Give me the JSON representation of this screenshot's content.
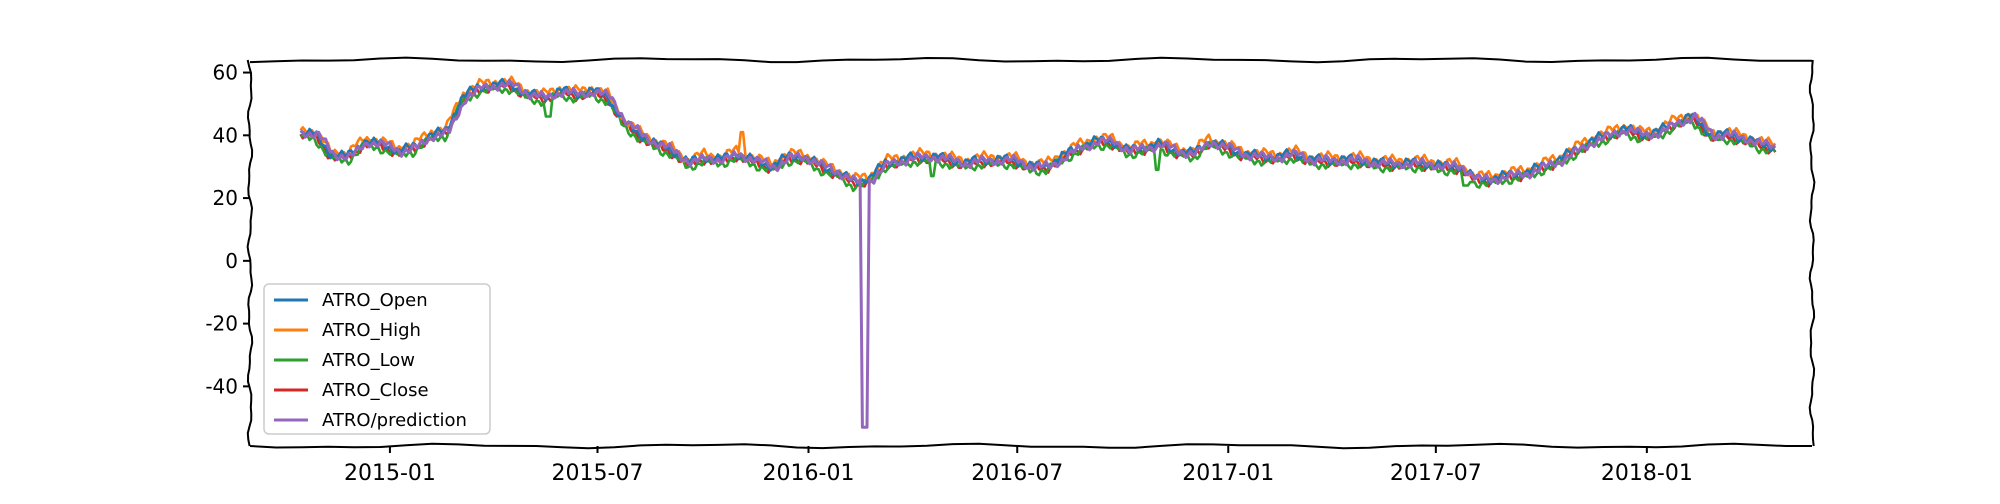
{
  "chart_data": {
    "type": "line",
    "title": "",
    "xlabel": "",
    "ylabel": "",
    "xlim": [
      "2014-09-01",
      "2018-05-25"
    ],
    "ylim": [
      -59,
      64
    ],
    "yticks": [
      60,
      40,
      20,
      0,
      -20,
      -40
    ],
    "ytick_labels": [
      "60",
      "40",
      "20",
      "0",
      "-20",
      "-40"
    ],
    "xticks": [
      "2015-01-01",
      "2015-07-01",
      "2016-01-01",
      "2016-07-01",
      "2017-01-01",
      "2017-07-01",
      "2018-01-01"
    ],
    "xtick_labels": [
      "2015-01",
      "2015-07",
      "2016-01",
      "2016-07",
      "2017-01",
      "2017-07",
      "2018-01"
    ],
    "legend_position": "lower-left",
    "series": [
      {
        "name": "ATRO_Open",
        "color": "#1f77b4",
        "offset": 0.3
      },
      {
        "name": "ATRO_High",
        "color": "#ff7f0e",
        "offset": 1.2,
        "spikes": [
          {
            "x": "2015-11-04",
            "y": 41
          }
        ]
      },
      {
        "name": "ATRO_Low",
        "color": "#2ca02c",
        "offset": -1.2,
        "spikes": [
          {
            "x": "2015-05-19",
            "y": 46
          },
          {
            "x": "2016-04-18",
            "y": 27
          },
          {
            "x": "2016-10-31",
            "y": 29
          },
          {
            "x": "2017-07-27",
            "y": 24
          }
        ]
      },
      {
        "name": "ATRO_Close",
        "color": "#d62728",
        "offset": -0.6,
        "lead": 0
      },
      {
        "name": "ATRO/prediction",
        "color": "#9467bd",
        "offset": 0,
        "lead": 1,
        "spikes": [
          {
            "x": "2016-02-19",
            "y": -53
          }
        ]
      }
    ],
    "x": [
      "2014-10-15",
      "2014-10-28",
      "2014-11-10",
      "2014-11-25",
      "2014-12-10",
      "2014-12-24",
      "2015-01-08",
      "2015-01-22",
      "2015-02-05",
      "2015-02-19",
      "2015-03-05",
      "2015-03-19",
      "2015-04-02",
      "2015-04-16",
      "2015-05-01",
      "2015-05-15",
      "2015-05-29",
      "2015-06-12",
      "2015-06-26",
      "2015-07-10",
      "2015-07-24",
      "2015-08-07",
      "2015-08-21",
      "2015-09-04",
      "2015-09-18",
      "2015-10-02",
      "2015-10-16",
      "2015-10-30",
      "2015-11-13",
      "2015-11-30",
      "2015-12-14",
      "2015-12-28",
      "2016-01-12",
      "2016-01-26",
      "2016-02-09",
      "2016-02-23",
      "2016-03-08",
      "2016-03-22",
      "2016-04-05",
      "2016-04-19",
      "2016-05-03",
      "2016-05-17",
      "2016-05-31",
      "2016-06-14",
      "2016-06-28",
      "2016-07-12",
      "2016-07-26",
      "2016-08-09",
      "2016-08-23",
      "2016-09-07",
      "2016-09-21",
      "2016-10-05",
      "2016-10-19",
      "2016-11-02",
      "2016-11-16",
      "2016-12-01",
      "2016-12-15",
      "2016-12-30",
      "2017-01-13",
      "2017-01-30",
      "2017-02-13",
      "2017-02-28",
      "2017-03-14",
      "2017-03-28",
      "2017-04-11",
      "2017-04-26",
      "2017-05-10",
      "2017-05-24",
      "2017-06-08",
      "2017-06-22",
      "2017-07-07",
      "2017-07-21",
      "2017-08-04",
      "2017-08-18",
      "2017-09-01",
      "2017-09-18",
      "2017-10-02",
      "2017-10-16",
      "2017-10-30",
      "2017-11-13",
      "2017-11-28",
      "2017-12-12",
      "2017-12-27",
      "2018-01-11",
      "2018-01-26",
      "2018-02-09",
      "2018-02-26",
      "2018-03-12",
      "2018-03-26",
      "2018-04-10",
      "2018-04-24"
    ],
    "values": [
      41,
      40,
      34,
      33,
      38,
      37,
      35,
      36,
      40,
      41,
      52,
      55,
      56,
      56,
      53,
      52,
      54,
      53,
      54,
      52,
      44,
      40,
      37,
      35,
      31,
      33,
      32,
      34,
      32,
      30,
      33,
      33,
      30,
      28,
      25,
      26,
      31,
      32,
      33,
      33,
      32,
      31,
      32,
      32,
      32,
      30,
      30,
      33,
      36,
      38,
      38,
      35,
      36,
      37,
      35,
      34,
      38,
      36,
      34,
      33,
      33,
      34,
      32,
      32,
      32,
      32,
      31,
      31,
      31,
      31,
      30,
      30,
      26,
      26,
      27,
      28,
      30,
      32,
      35,
      38,
      40,
      42,
      40,
      41,
      44,
      46,
      40,
      40,
      39,
      37,
      36
    ]
  }
}
